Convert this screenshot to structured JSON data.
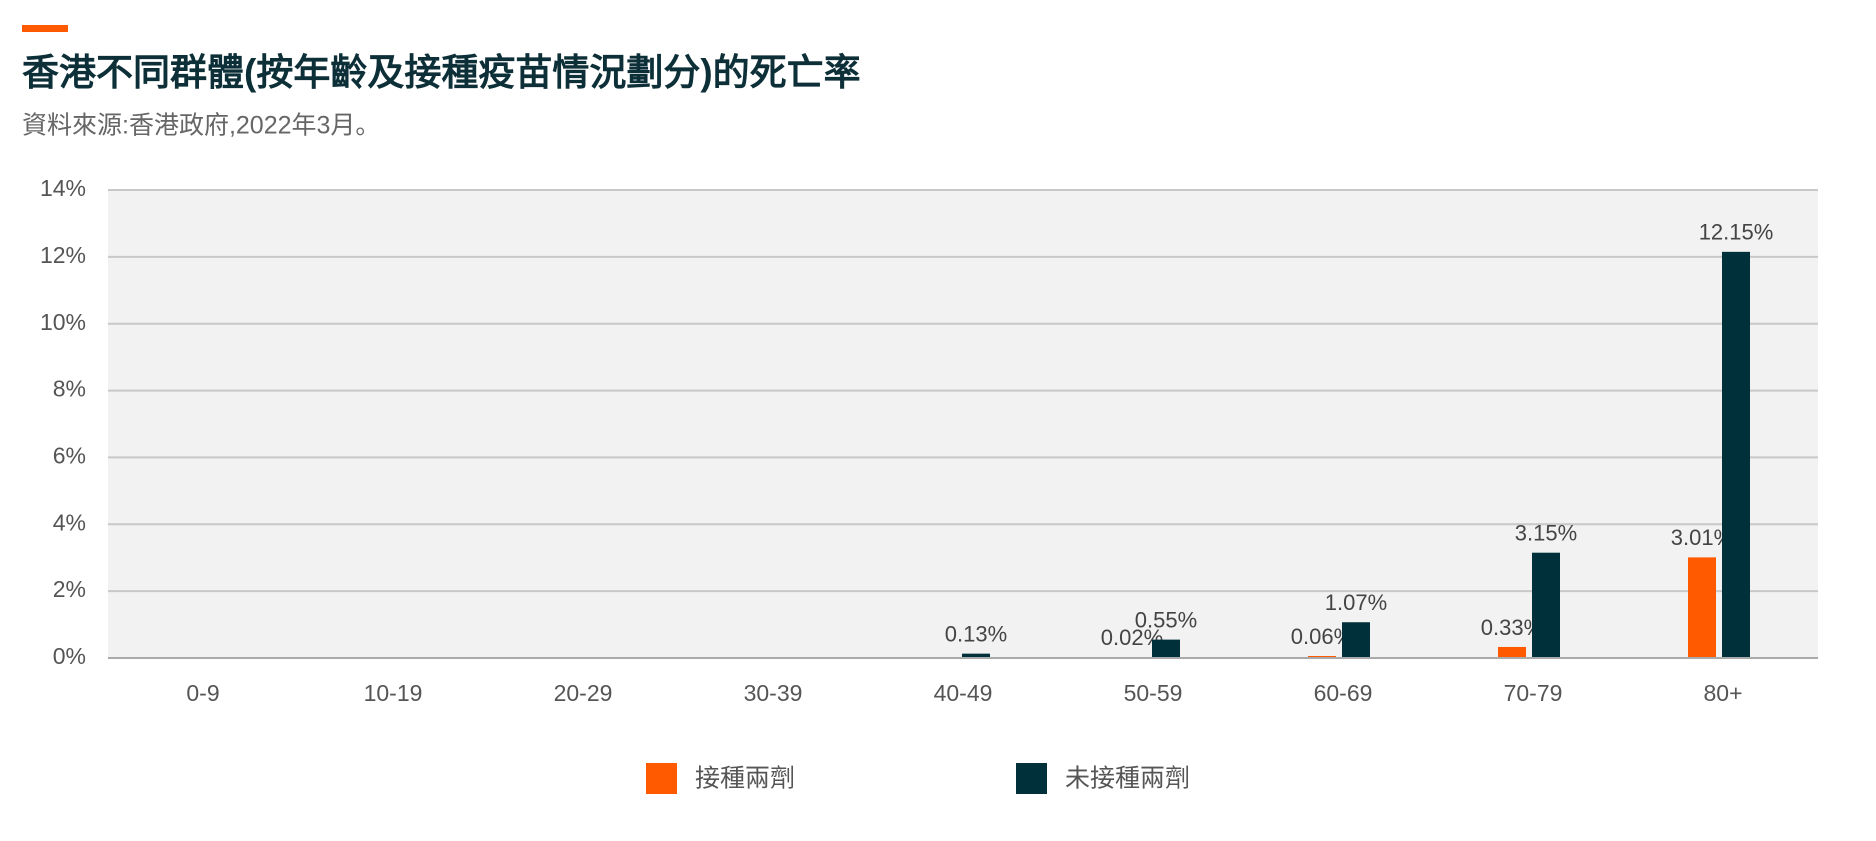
{
  "title": "香港不同群體(按年齡及接種疫苗情況劃分)的死亡率",
  "subtitle": "資料來源:香港政府,2022年3月。",
  "chart_data": {
    "type": "bar",
    "categories": [
      "0-9",
      "10-19",
      "20-29",
      "30-39",
      "40-49",
      "50-59",
      "60-69",
      "70-79",
      "80+"
    ],
    "series": [
      {
        "name": "接種兩劑",
        "color": "#ff5a00",
        "values": [
          null,
          null,
          null,
          null,
          null,
          0.02,
          0.06,
          0.33,
          3.01
        ],
        "value_labels": [
          null,
          null,
          null,
          null,
          null,
          "0.02%",
          "0.06%",
          "0.33%",
          "3.01%"
        ]
      },
      {
        "name": "未接種兩劑",
        "color": "#00303a",
        "values": [
          null,
          null,
          null,
          null,
          0.13,
          0.55,
          1.07,
          3.15,
          12.15
        ],
        "value_labels": [
          null,
          null,
          null,
          null,
          "0.13%",
          "0.55%",
          "1.07%",
          "3.15%",
          "12.15%"
        ]
      }
    ],
    "ylim": [
      0,
      14
    ],
    "yticks": [
      {
        "value": 0,
        "label": "0%"
      },
      {
        "value": 2,
        "label": "2%"
      },
      {
        "value": 4,
        "label": "4%"
      },
      {
        "value": 6,
        "label": "6%"
      },
      {
        "value": 8,
        "label": "8%"
      },
      {
        "value": 10,
        "label": "10%"
      },
      {
        "value": 12,
        "label": "12%"
      },
      {
        "value": 14,
        "label": "14%"
      }
    ],
    "grid": true
  }
}
